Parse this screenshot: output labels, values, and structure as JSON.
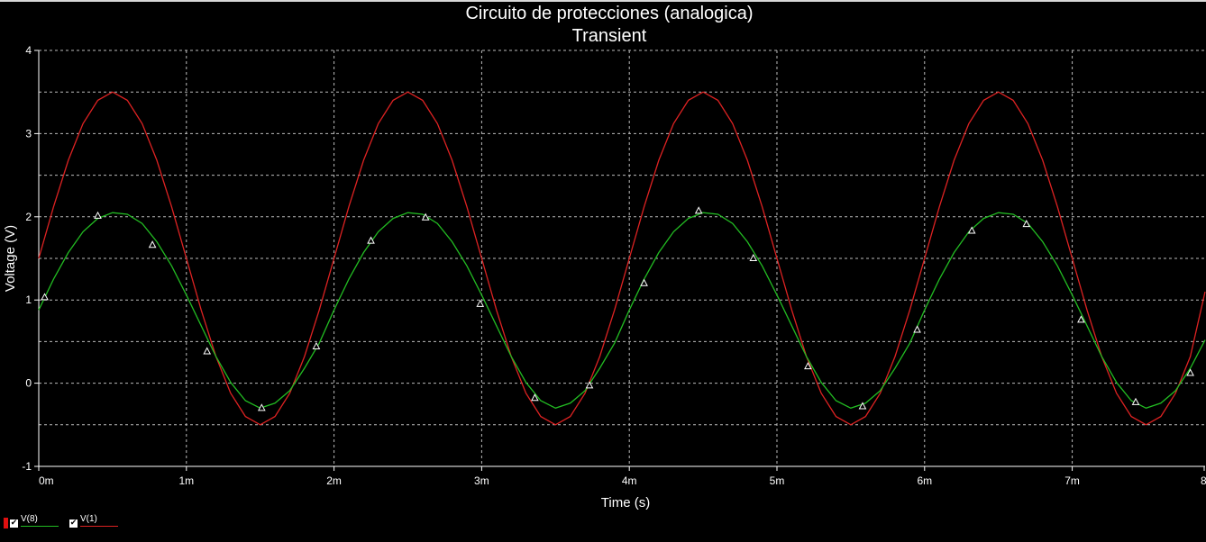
{
  "chart_data": {
    "type": "line",
    "title": "Circuito de protecciones (analogica)",
    "subtitle": "Transient",
    "xlabel": "Time (s)",
    "ylabel": "Voltage (V)",
    "xlim": [
      0,
      0.0079
    ],
    "ylim": [
      -1,
      4
    ],
    "x_ticks": [
      0,
      0.001,
      0.002,
      0.003,
      0.004,
      0.005,
      0.006,
      0.007,
      0.008
    ],
    "x_tick_labels": [
      "0m",
      "1m",
      "2m",
      "3m",
      "4m",
      "5m",
      "6m",
      "7m",
      "8m"
    ],
    "y_ticks": [
      -1,
      0,
      1,
      2,
      3,
      4
    ],
    "y_tick_labels": [
      "-1",
      "0",
      "1",
      "2",
      "3",
      "4"
    ],
    "grid": true,
    "legend_position": "bottom-left",
    "series": [
      {
        "name": "V(8)",
        "color": "#22bb22",
        "marker": "triangle",
        "x": [
          0,
          0.0001,
          0.0002,
          0.0003,
          0.0004,
          0.0005,
          0.0006,
          0.0007,
          0.0008,
          0.0009,
          0.001,
          0.0011,
          0.0012,
          0.0013,
          0.0014,
          0.0015,
          0.0016,
          0.0017,
          0.0018,
          0.0019,
          0.002,
          0.0021,
          0.0022,
          0.0023,
          0.0024,
          0.0025,
          0.0026,
          0.0027,
          0.0028,
          0.0029,
          0.003,
          0.0031,
          0.0032,
          0.0033,
          0.0034,
          0.0035,
          0.0036,
          0.0037,
          0.0038,
          0.0039,
          0.004,
          0.0041,
          0.0042,
          0.0043,
          0.0044,
          0.0045,
          0.0046,
          0.0047,
          0.0048,
          0.0049,
          0.005,
          0.0051,
          0.0052,
          0.0053,
          0.0054,
          0.0055,
          0.0056,
          0.0057,
          0.0058,
          0.0059,
          0.006,
          0.0061,
          0.0062,
          0.0063,
          0.0064,
          0.0065,
          0.0066,
          0.0067,
          0.0068,
          0.0069,
          0.007,
          0.0071,
          0.0072,
          0.0073,
          0.0074,
          0.0075,
          0.0076,
          0.0077,
          0.0078,
          0.0079
        ],
        "values": [
          0.88,
          1.25,
          1.57,
          1.82,
          1.98,
          2.05,
          2.03,
          1.92,
          1.7,
          1.41,
          1.06,
          0.69,
          0.32,
          0.01,
          -0.21,
          -0.3,
          -0.24,
          -0.09,
          0.18,
          0.48,
          0.88,
          1.25,
          1.57,
          1.82,
          1.98,
          2.05,
          2.03,
          1.92,
          1.7,
          1.41,
          1.06,
          0.69,
          0.32,
          0.01,
          -0.21,
          -0.3,
          -0.24,
          -0.09,
          0.18,
          0.48,
          0.88,
          1.25,
          1.57,
          1.82,
          1.98,
          2.05,
          2.03,
          1.92,
          1.7,
          1.41,
          1.06,
          0.69,
          0.32,
          0.01,
          -0.21,
          -0.3,
          -0.24,
          -0.09,
          0.18,
          0.48,
          0.88,
          1.25,
          1.57,
          1.82,
          1.98,
          2.05,
          2.03,
          1.92,
          1.7,
          1.41,
          1.06,
          0.69,
          0.32,
          0.01,
          -0.21,
          -0.3,
          -0.24,
          -0.09,
          0.18,
          0.52
        ],
        "marker_x": [
          4e-05,
          0.0004,
          0.00077,
          0.00114,
          0.00151,
          0.00188,
          0.00225,
          0.00262,
          0.00299,
          0.00336,
          0.00373,
          0.0041,
          0.00447,
          0.00484,
          0.00521,
          0.00558,
          0.00595,
          0.00632,
          0.00669,
          0.00706,
          0.00743,
          0.0078
        ],
        "marker_y": [
          1.03,
          2.01,
          1.66,
          0.38,
          -0.3,
          0.44,
          1.71,
          1.99,
          0.95,
          -0.18,
          -0.03,
          1.2,
          2.07,
          1.5,
          0.2,
          -0.28,
          0.64,
          1.83,
          1.91,
          0.76,
          -0.23,
          0.12
        ]
      },
      {
        "name": "V(1)",
        "color": "#dd2222",
        "x": [
          0,
          0.0001,
          0.0002,
          0.0003,
          0.0004,
          0.0005,
          0.0006,
          0.0007,
          0.0008,
          0.0009,
          0.001,
          0.0011,
          0.0012,
          0.0013,
          0.0014,
          0.0015,
          0.0016,
          0.0017,
          0.0018,
          0.0019,
          0.002,
          0.0021,
          0.0022,
          0.0023,
          0.0024,
          0.0025,
          0.0026,
          0.0027,
          0.0028,
          0.0029,
          0.003,
          0.0031,
          0.0032,
          0.0033,
          0.0034,
          0.0035,
          0.0036,
          0.0037,
          0.0038,
          0.0039,
          0.004,
          0.0041,
          0.0042,
          0.0043,
          0.0044,
          0.0045,
          0.0046,
          0.0047,
          0.0048,
          0.0049,
          0.005,
          0.0051,
          0.0052,
          0.0053,
          0.0054,
          0.0055,
          0.0056,
          0.0057,
          0.0058,
          0.0059,
          0.006,
          0.0061,
          0.0062,
          0.0063,
          0.0064,
          0.0065,
          0.0066,
          0.0067,
          0.0068,
          0.0069,
          0.007,
          0.0071,
          0.0072,
          0.0073,
          0.0074,
          0.0075,
          0.0076,
          0.0077,
          0.0078,
          0.0079
        ],
        "values": [
          1.5,
          2.12,
          2.68,
          3.12,
          3.4,
          3.5,
          3.4,
          3.12,
          2.68,
          2.12,
          1.5,
          0.88,
          0.32,
          -0.12,
          -0.4,
          -0.5,
          -0.4,
          -0.12,
          0.32,
          0.88,
          1.5,
          2.12,
          2.68,
          3.12,
          3.4,
          3.5,
          3.4,
          3.12,
          2.68,
          2.12,
          1.5,
          0.88,
          0.32,
          -0.12,
          -0.4,
          -0.5,
          -0.4,
          -0.12,
          0.32,
          0.88,
          1.5,
          2.12,
          2.68,
          3.12,
          3.4,
          3.5,
          3.4,
          3.12,
          2.68,
          2.12,
          1.5,
          0.88,
          0.32,
          -0.12,
          -0.4,
          -0.5,
          -0.4,
          -0.12,
          0.32,
          0.88,
          1.5,
          2.12,
          2.68,
          3.12,
          3.4,
          3.5,
          3.4,
          3.12,
          2.68,
          2.12,
          1.5,
          0.88,
          0.32,
          -0.12,
          -0.4,
          -0.5,
          -0.4,
          -0.12,
          0.32,
          1.1
        ]
      }
    ]
  },
  "legend": {
    "items": [
      {
        "label": "V(8)",
        "color": "#22bb22"
      },
      {
        "label": "V(1)",
        "color": "#dd2222"
      }
    ]
  }
}
